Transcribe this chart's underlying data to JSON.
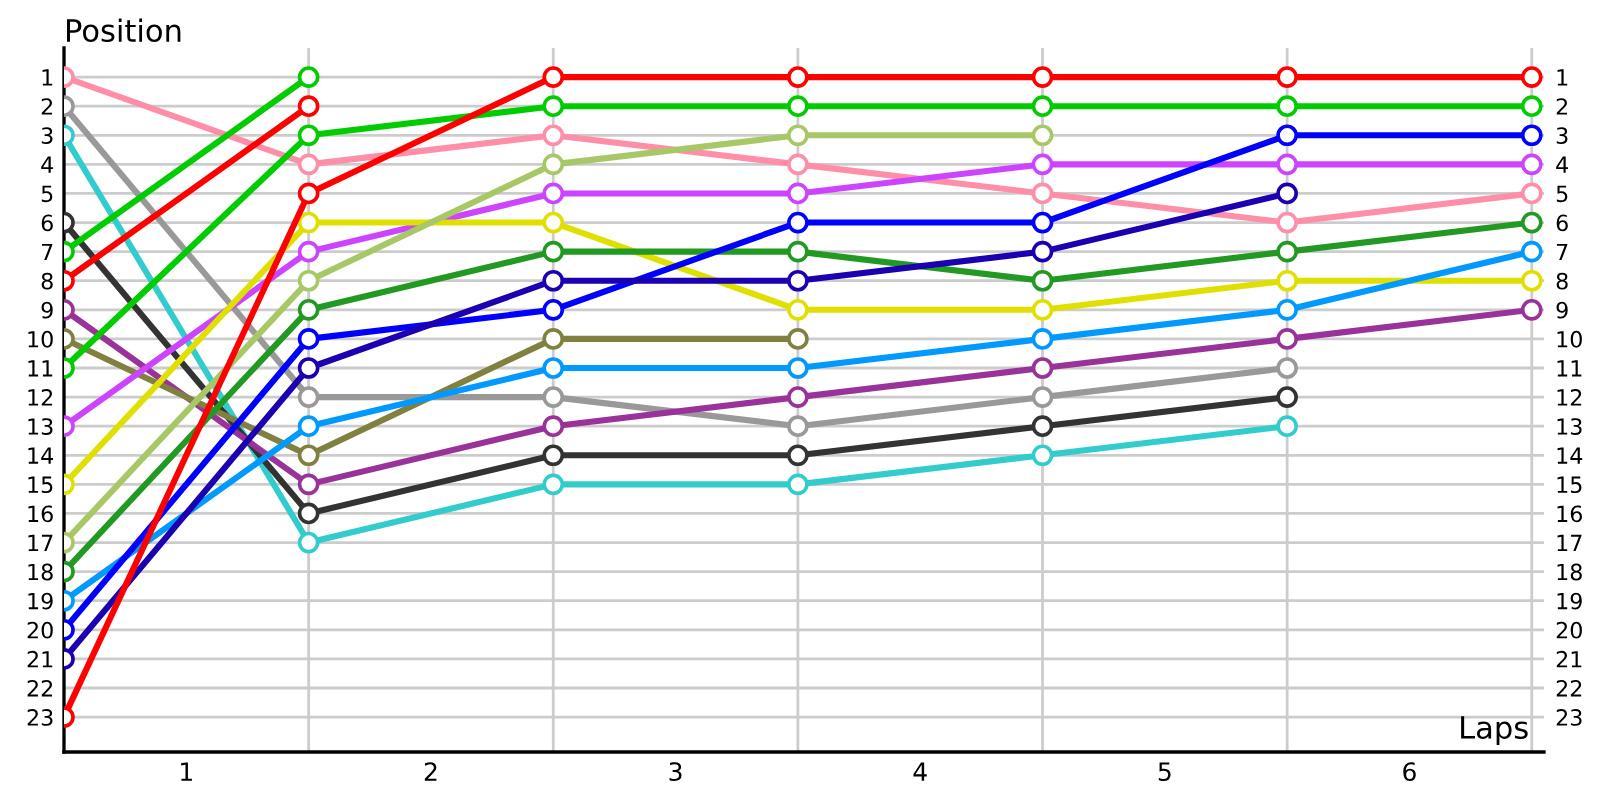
{
  "chart_data": {
    "type": "line",
    "xlabel": "Laps",
    "ylabel": "Position",
    "x": [
      0,
      1,
      2,
      3,
      4,
      5,
      6
    ],
    "xlim": [
      0,
      6.05
    ],
    "xticks": [
      {
        "value": 0.5,
        "label": "1"
      },
      {
        "value": 1.5,
        "label": "2"
      },
      {
        "value": 2.5,
        "label": "3"
      },
      {
        "value": 3.5,
        "label": "4"
      },
      {
        "value": 4.5,
        "label": "5"
      },
      {
        "value": 5.5,
        "label": "6"
      },
      {
        "value": 1,
        "label": null
      },
      {
        "value": 2,
        "label": null
      },
      {
        "value": 3,
        "label": null
      },
      {
        "value": 4,
        "label": null
      },
      {
        "value": 5,
        "label": null
      },
      {
        "value": 6,
        "label": null
      }
    ],
    "ylim": [
      24.2,
      0
    ],
    "yticks": [
      1,
      2,
      3,
      4,
      5,
      6,
      7,
      8,
      9,
      10,
      11,
      12,
      13,
      14,
      15,
      16,
      17,
      18,
      19,
      20,
      21,
      22,
      23
    ],
    "y2lim": [
      24.2,
      0
    ],
    "y2ticks": [
      1,
      2,
      3,
      4,
      5,
      6,
      7,
      8,
      9,
      10,
      11,
      12,
      13,
      14,
      15,
      16,
      17,
      18,
      19,
      20,
      21,
      22,
      23
    ],
    "grid": true,
    "marker": "circle",
    "line_style": "solid",
    "legend": false,
    "series": [
      {
        "color": "#ff8fa8",
        "values": [
          1,
          4,
          3,
          4,
          5,
          6,
          5
        ]
      },
      {
        "color": "#999999",
        "values": [
          2,
          12,
          12,
          13,
          12,
          11,
          null
        ]
      },
      {
        "color": "#33cccc",
        "values": [
          3,
          17,
          15,
          15,
          14,
          13,
          null
        ]
      },
      {
        "color": "#333333",
        "values": [
          6,
          16,
          14,
          14,
          13,
          12,
          null
        ]
      },
      {
        "color": "#00cc00",
        "values": [
          7,
          1,
          null,
          null,
          null,
          null,
          null
        ]
      },
      {
        "color": "#ff0000",
        "values": [
          8,
          2,
          null,
          null,
          null,
          null,
          null
        ]
      },
      {
        "color": "#993399",
        "values": [
          9,
          15,
          13,
          12,
          11,
          10,
          9
        ]
      },
      {
        "color": "#808040",
        "values": [
          10,
          14,
          10,
          10,
          null,
          null,
          null
        ]
      },
      {
        "color": "#00cc00",
        "values": [
          11,
          3,
          2,
          2,
          2,
          2,
          2
        ]
      },
      {
        "color": "#cc44ff",
        "values": [
          13,
          7,
          5,
          5,
          4,
          4,
          4
        ]
      },
      {
        "color": "#e0e000",
        "values": [
          15,
          6,
          6,
          9,
          9,
          8,
          8
        ]
      },
      {
        "color": "#a8c868",
        "values": [
          17,
          8,
          4,
          3,
          3,
          null,
          null
        ]
      },
      {
        "color": "#229922",
        "values": [
          18,
          9,
          7,
          7,
          8,
          7,
          6
        ]
      },
      {
        "color": "#0099ff",
        "values": [
          19,
          13,
          11,
          11,
          10,
          9,
          7
        ]
      },
      {
        "color": "#0000ff",
        "values": [
          20,
          10,
          9,
          6,
          6,
          3,
          3
        ]
      },
      {
        "color": "#1a00b0",
        "values": [
          21,
          11,
          8,
          8,
          7,
          5,
          null
        ]
      },
      {
        "color": "#ff0000",
        "values": [
          23,
          5,
          1,
          1,
          1,
          1,
          1
        ]
      }
    ]
  }
}
